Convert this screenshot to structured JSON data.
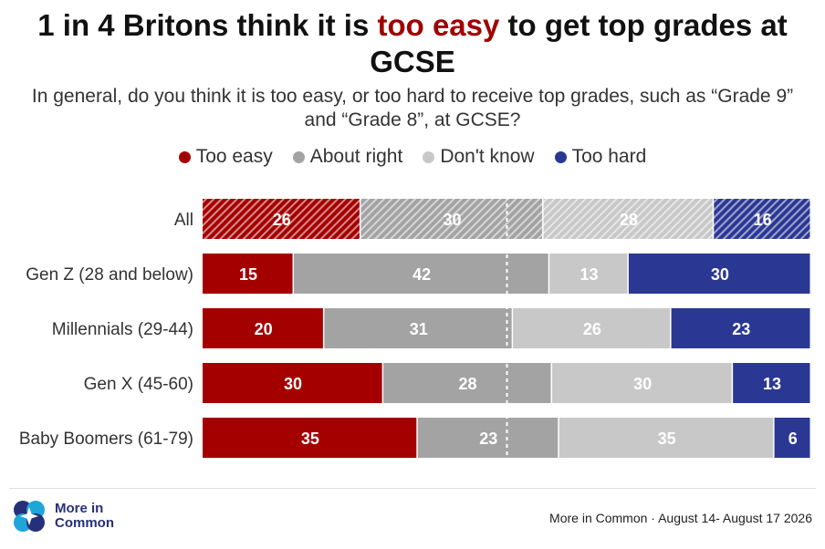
{
  "title": {
    "part1": "1 in 4 Britons think it is ",
    "highlight": "too easy",
    "part2": " to get top grades at GCSE"
  },
  "subtitle": "In general, do you think it is too easy, or too hard to receive top grades, such as “Grade 9” and “Grade 8”, at GCSE?",
  "legend": [
    {
      "label": "Too easy",
      "color": "#a50000"
    },
    {
      "label": "About right",
      "color": "#a3a3a3"
    },
    {
      "label": "Don't know",
      "color": "#c8c8c8"
    },
    {
      "label": "Too hard",
      "color": "#2b3893"
    }
  ],
  "chart_data": {
    "type": "bar",
    "orientation": "horizontal",
    "stacked": true,
    "percent_stacked": true,
    "categories": [
      "All",
      "Gen Z (28 and below)",
      "Millennials (29-44)",
      "Gen X (45-60)",
      "Baby Boomers (61-79)"
    ],
    "series": [
      {
        "name": "Too easy",
        "values": [
          26,
          15,
          20,
          30,
          35
        ]
      },
      {
        "name": "About right",
        "values": [
          30,
          42,
          31,
          28,
          23
        ]
      },
      {
        "name": "Don't know",
        "values": [
          28,
          13,
          26,
          30,
          35
        ]
      },
      {
        "name": "Too hard",
        "values": [
          16,
          30,
          23,
          13,
          6
        ]
      }
    ],
    "highlighted_category": "All",
    "reference_line": 50,
    "legend_position": "top",
    "grid": false
  },
  "footer": {
    "logo_line1": "More in",
    "logo_line2": "Common",
    "source": "More in Common · August 14- August 17 2026"
  }
}
